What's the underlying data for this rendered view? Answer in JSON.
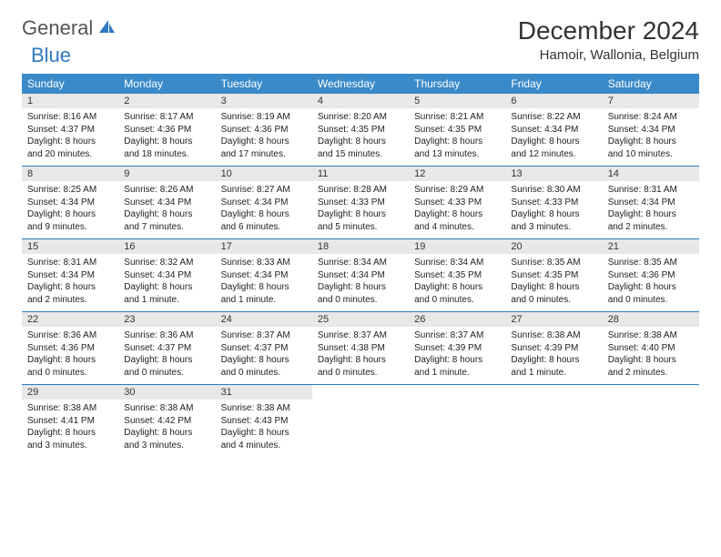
{
  "logo": {
    "part1": "General",
    "part2": "Blue"
  },
  "title": "December 2024",
  "location": "Hamoir, Wallonia, Belgium",
  "colors": {
    "header_blue": "#3a8ac2",
    "logo_blue": "#2e7ac2",
    "row_gray": "#e8e8e8",
    "border_blue": "#2e7ac2",
    "text": "#222222"
  },
  "day_names": [
    "Sunday",
    "Monday",
    "Tuesday",
    "Wednesday",
    "Thursday",
    "Friday",
    "Saturday"
  ],
  "weeks": [
    [
      {
        "n": "1",
        "sr": "8:16 AM",
        "ss": "4:37 PM",
        "dl": "8 hours and 20 minutes."
      },
      {
        "n": "2",
        "sr": "8:17 AM",
        "ss": "4:36 PM",
        "dl": "8 hours and 18 minutes."
      },
      {
        "n": "3",
        "sr": "8:19 AM",
        "ss": "4:36 PM",
        "dl": "8 hours and 17 minutes."
      },
      {
        "n": "4",
        "sr": "8:20 AM",
        "ss": "4:35 PM",
        "dl": "8 hours and 15 minutes."
      },
      {
        "n": "5",
        "sr": "8:21 AM",
        "ss": "4:35 PM",
        "dl": "8 hours and 13 minutes."
      },
      {
        "n": "6",
        "sr": "8:22 AM",
        "ss": "4:34 PM",
        "dl": "8 hours and 12 minutes."
      },
      {
        "n": "7",
        "sr": "8:24 AM",
        "ss": "4:34 PM",
        "dl": "8 hours and 10 minutes."
      }
    ],
    [
      {
        "n": "8",
        "sr": "8:25 AM",
        "ss": "4:34 PM",
        "dl": "8 hours and 9 minutes."
      },
      {
        "n": "9",
        "sr": "8:26 AM",
        "ss": "4:34 PM",
        "dl": "8 hours and 7 minutes."
      },
      {
        "n": "10",
        "sr": "8:27 AM",
        "ss": "4:34 PM",
        "dl": "8 hours and 6 minutes."
      },
      {
        "n": "11",
        "sr": "8:28 AM",
        "ss": "4:33 PM",
        "dl": "8 hours and 5 minutes."
      },
      {
        "n": "12",
        "sr": "8:29 AM",
        "ss": "4:33 PM",
        "dl": "8 hours and 4 minutes."
      },
      {
        "n": "13",
        "sr": "8:30 AM",
        "ss": "4:33 PM",
        "dl": "8 hours and 3 minutes."
      },
      {
        "n": "14",
        "sr": "8:31 AM",
        "ss": "4:34 PM",
        "dl": "8 hours and 2 minutes."
      }
    ],
    [
      {
        "n": "15",
        "sr": "8:31 AM",
        "ss": "4:34 PM",
        "dl": "8 hours and 2 minutes."
      },
      {
        "n": "16",
        "sr": "8:32 AM",
        "ss": "4:34 PM",
        "dl": "8 hours and 1 minute."
      },
      {
        "n": "17",
        "sr": "8:33 AM",
        "ss": "4:34 PM",
        "dl": "8 hours and 1 minute."
      },
      {
        "n": "18",
        "sr": "8:34 AM",
        "ss": "4:34 PM",
        "dl": "8 hours and 0 minutes."
      },
      {
        "n": "19",
        "sr": "8:34 AM",
        "ss": "4:35 PM",
        "dl": "8 hours and 0 minutes."
      },
      {
        "n": "20",
        "sr": "8:35 AM",
        "ss": "4:35 PM",
        "dl": "8 hours and 0 minutes."
      },
      {
        "n": "21",
        "sr": "8:35 AM",
        "ss": "4:36 PM",
        "dl": "8 hours and 0 minutes."
      }
    ],
    [
      {
        "n": "22",
        "sr": "8:36 AM",
        "ss": "4:36 PM",
        "dl": "8 hours and 0 minutes."
      },
      {
        "n": "23",
        "sr": "8:36 AM",
        "ss": "4:37 PM",
        "dl": "8 hours and 0 minutes."
      },
      {
        "n": "24",
        "sr": "8:37 AM",
        "ss": "4:37 PM",
        "dl": "8 hours and 0 minutes."
      },
      {
        "n": "25",
        "sr": "8:37 AM",
        "ss": "4:38 PM",
        "dl": "8 hours and 0 minutes."
      },
      {
        "n": "26",
        "sr": "8:37 AM",
        "ss": "4:39 PM",
        "dl": "8 hours and 1 minute."
      },
      {
        "n": "27",
        "sr": "8:38 AM",
        "ss": "4:39 PM",
        "dl": "8 hours and 1 minute."
      },
      {
        "n": "28",
        "sr": "8:38 AM",
        "ss": "4:40 PM",
        "dl": "8 hours and 2 minutes."
      }
    ],
    [
      {
        "n": "29",
        "sr": "8:38 AM",
        "ss": "4:41 PM",
        "dl": "8 hours and 3 minutes."
      },
      {
        "n": "30",
        "sr": "8:38 AM",
        "ss": "4:42 PM",
        "dl": "8 hours and 3 minutes."
      },
      {
        "n": "31",
        "sr": "8:38 AM",
        "ss": "4:43 PM",
        "dl": "8 hours and 4 minutes."
      },
      null,
      null,
      null,
      null
    ]
  ],
  "labels": {
    "sunrise": "Sunrise: ",
    "sunset": "Sunset: ",
    "daylight": "Daylight: "
  }
}
